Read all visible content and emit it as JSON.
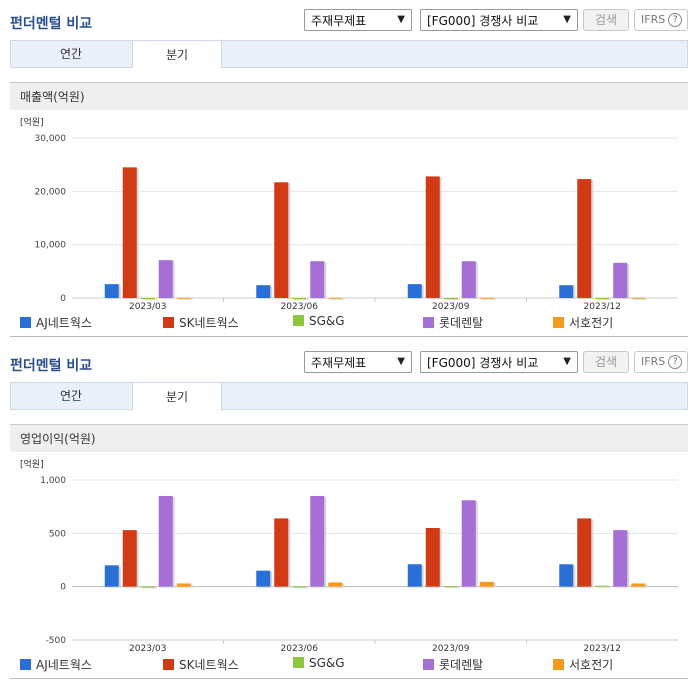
{
  "panels": [
    {
      "title": "펀더멘털 비교",
      "select1": "주재무제표",
      "select2": "[FG000] 경쟁사 비교",
      "search_label": "검색",
      "ifrs_label": "IFRS",
      "ifrs_help": "?",
      "tabs": [
        {
          "label": "연간"
        },
        {
          "label": "분기"
        }
      ],
      "active_tab": "분기",
      "subtitle": "매출액(억원)"
    },
    {
      "title": "펀더멘털 비교",
      "select1": "주재무제표",
      "select2": "[FG000] 경쟁사 비교",
      "search_label": "검색",
      "ifrs_label": "IFRS",
      "ifrs_help": "?",
      "tabs": [
        {
          "label": "연간"
        },
        {
          "label": "분기"
        }
      ],
      "active_tab": "분기",
      "subtitle": "영업이익(억원)"
    }
  ],
  "legend": [
    {
      "name": "AJ네트웍스",
      "color": "#2a6fd6"
    },
    {
      "name": "SK네트웍스",
      "color": "#d03a14"
    },
    {
      "name": "SG&G",
      "color": "#8ec63f"
    },
    {
      "name": "롯데렌탈",
      "color": "#a66fd6"
    },
    {
      "name": "서호전기",
      "color": "#f59a1b"
    }
  ],
  "chart_data": [
    {
      "type": "bar",
      "unit_label": "[억원]",
      "categories": [
        "2023/03",
        "2023/06",
        "2023/09",
        "2023/12"
      ],
      "ylim": [
        0,
        30000
      ],
      "yticks": [
        0,
        10000,
        20000,
        30000
      ],
      "ytick_labels": [
        "0",
        "10,000",
        "20,000",
        "30,000"
      ],
      "series": [
        {
          "name": "AJ네트웍스",
          "values": [
            2600,
            2400,
            2600,
            2400
          ]
        },
        {
          "name": "SK네트웍스",
          "values": [
            24500,
            21700,
            22800,
            22300
          ]
        },
        {
          "name": "SG&G",
          "values": [
            0,
            0,
            0,
            0
          ]
        },
        {
          "name": "롯데렌탈",
          "values": [
            7100,
            6900,
            6900,
            6600
          ]
        },
        {
          "name": "서호전기",
          "values": [
            50,
            60,
            60,
            50
          ]
        }
      ]
    },
    {
      "type": "bar",
      "unit_label": "[억원]",
      "categories": [
        "2023/03",
        "2023/06",
        "2023/09",
        "2023/12"
      ],
      "ylim": [
        -500,
        1000
      ],
      "yticks": [
        -500,
        0,
        500,
        1000
      ],
      "ytick_labels": [
        "-500",
        "0",
        "500",
        "1,000"
      ],
      "series": [
        {
          "name": "AJ네트웍스",
          "values": [
            200,
            150,
            210,
            210
          ]
        },
        {
          "name": "SK네트웍스",
          "values": [
            530,
            640,
            550,
            640
          ]
        },
        {
          "name": "SG&G",
          "values": [
            2,
            3,
            5,
            10
          ]
        },
        {
          "name": "롯데렌탈",
          "values": [
            850,
            850,
            810,
            530
          ]
        },
        {
          "name": "서호전기",
          "values": [
            30,
            40,
            45,
            30
          ]
        }
      ]
    }
  ]
}
